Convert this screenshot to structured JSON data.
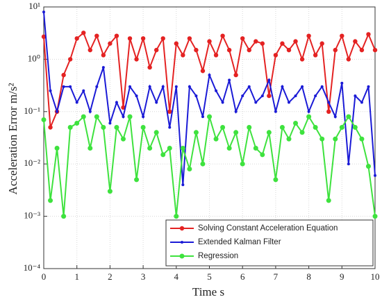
{
  "chart_data": {
    "type": "line",
    "xlabel": "Time s",
    "ylabel": "Acceleration Error m/s²",
    "x": [
      0,
      0.2,
      0.4,
      0.6,
      0.8,
      1,
      1.2,
      1.4,
      1.6,
      1.8,
      2,
      2.2,
      2.4,
      2.6,
      2.8,
      3,
      3.2,
      3.4,
      3.6,
      3.8,
      4,
      4.2,
      4.4,
      4.6,
      4.8,
      5,
      5.2,
      5.4,
      5.6,
      5.8,
      6,
      6.2,
      6.4,
      6.6,
      6.8,
      7,
      7.2,
      7.4,
      7.6,
      7.8,
      8,
      8.2,
      8.4,
      8.6,
      8.8,
      9,
      9.2,
      9.4,
      9.6,
      9.8,
      10
    ],
    "series": [
      {
        "name": "Solving Constant Acceleration Equation",
        "color": "#e42222",
        "values": [
          2.7,
          0.05,
          0.1,
          0.5,
          1.0,
          2.5,
          3.2,
          1.5,
          2.8,
          1.2,
          2.0,
          2.8,
          0.12,
          2.5,
          1.0,
          2.5,
          0.7,
          1.5,
          2.5,
          0.1,
          2.0,
          1.2,
          2.5,
          1.5,
          0.6,
          2.2,
          1.2,
          2.8,
          1.5,
          0.5,
          2.5,
          1.5,
          2.2,
          2.0,
          0.2,
          1.2,
          2.0,
          1.5,
          2.2,
          1.0,
          2.8,
          1.2,
          2.0,
          0.1,
          1.5,
          2.8,
          1.0,
          2.2,
          1.5,
          3.0,
          1.5
        ]
      },
      {
        "name": "Extended Kalman Filter",
        "color": "#1a1ad6",
        "values": [
          8,
          0.25,
          0.1,
          0.3,
          0.3,
          0.15,
          0.25,
          0.1,
          0.3,
          0.7,
          0.06,
          0.15,
          0.08,
          0.3,
          0.2,
          0.08,
          0.3,
          0.15,
          0.3,
          0.05,
          0.3,
          0.004,
          0.3,
          0.2,
          0.08,
          0.5,
          0.25,
          0.15,
          0.4,
          0.1,
          0.2,
          0.3,
          0.15,
          0.2,
          0.4,
          0.1,
          0.3,
          0.15,
          0.2,
          0.3,
          0.1,
          0.2,
          0.3,
          0.15,
          0.08,
          0.35,
          0.01,
          0.2,
          0.15,
          0.3,
          0.006
        ]
      },
      {
        "name": "Regression",
        "color": "#3ee23e",
        "values": [
          0.07,
          0.002,
          0.02,
          0.001,
          0.05,
          0.06,
          0.08,
          0.02,
          0.08,
          0.05,
          0.003,
          0.05,
          0.03,
          0.08,
          0.005,
          0.05,
          0.02,
          0.04,
          0.015,
          0.02,
          0.001,
          0.02,
          0.008,
          0.04,
          0.01,
          0.08,
          0.03,
          0.05,
          0.02,
          0.04,
          0.01,
          0.05,
          0.02,
          0.015,
          0.04,
          0.005,
          0.05,
          0.03,
          0.06,
          0.04,
          0.08,
          0.05,
          0.03,
          0.002,
          0.03,
          0.05,
          0.08,
          0.05,
          0.03,
          0.009,
          0.001
        ]
      }
    ],
    "xlim": [
      0,
      10
    ],
    "xticks": [
      0,
      1,
      2,
      3,
      4,
      5,
      6,
      7,
      8,
      9,
      10
    ],
    "ylim": [
      0.0001,
      10
    ],
    "log_y": true,
    "yticks": [
      {
        "value": 0.0001,
        "label": "10⁻⁴"
      },
      {
        "value": 0.001,
        "label": "10⁻³"
      },
      {
        "value": 0.01,
        "label": "10⁻²"
      },
      {
        "value": 0.1,
        "label": "10⁻¹"
      },
      {
        "value": 1,
        "label": "10⁰"
      },
      {
        "value": 10,
        "label": "10¹"
      }
    ],
    "grid": true,
    "legend": "lower right"
  }
}
